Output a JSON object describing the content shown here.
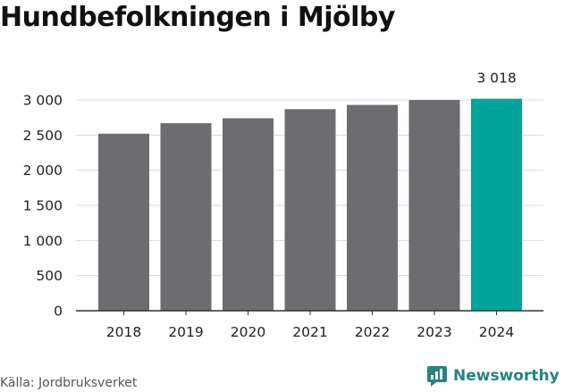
{
  "chart_data": {
    "type": "bar",
    "title": "Hundbefolkningen i Mjölby",
    "categories": [
      "2018",
      "2019",
      "2020",
      "2021",
      "2022",
      "2023",
      "2024"
    ],
    "values": [
      2520,
      2670,
      2740,
      2870,
      2930,
      3000,
      3018
    ],
    "ylim": [
      0,
      3000
    ],
    "yticks": [
      0,
      500,
      1000,
      1500,
      2000,
      2500,
      3000
    ],
    "ytick_labels": [
      "0",
      "500",
      "1 000",
      "1 500",
      "2 000",
      "2 500",
      "3 000"
    ],
    "data_labels": [
      null,
      null,
      null,
      null,
      null,
      null,
      "3 018"
    ],
    "grid": "horizontal",
    "colors": {
      "bar": "#6d6c71",
      "highlight": "#00a49a",
      "grid": "#d9d9d9",
      "axis": "#333333"
    },
    "highlight_index": 6
  },
  "footer": {
    "source": "Källa: Jordbruksverket",
    "brand": "Newsworthy",
    "brand_icon": "bar-chart-speech-icon",
    "brand_color": "#23857e"
  }
}
